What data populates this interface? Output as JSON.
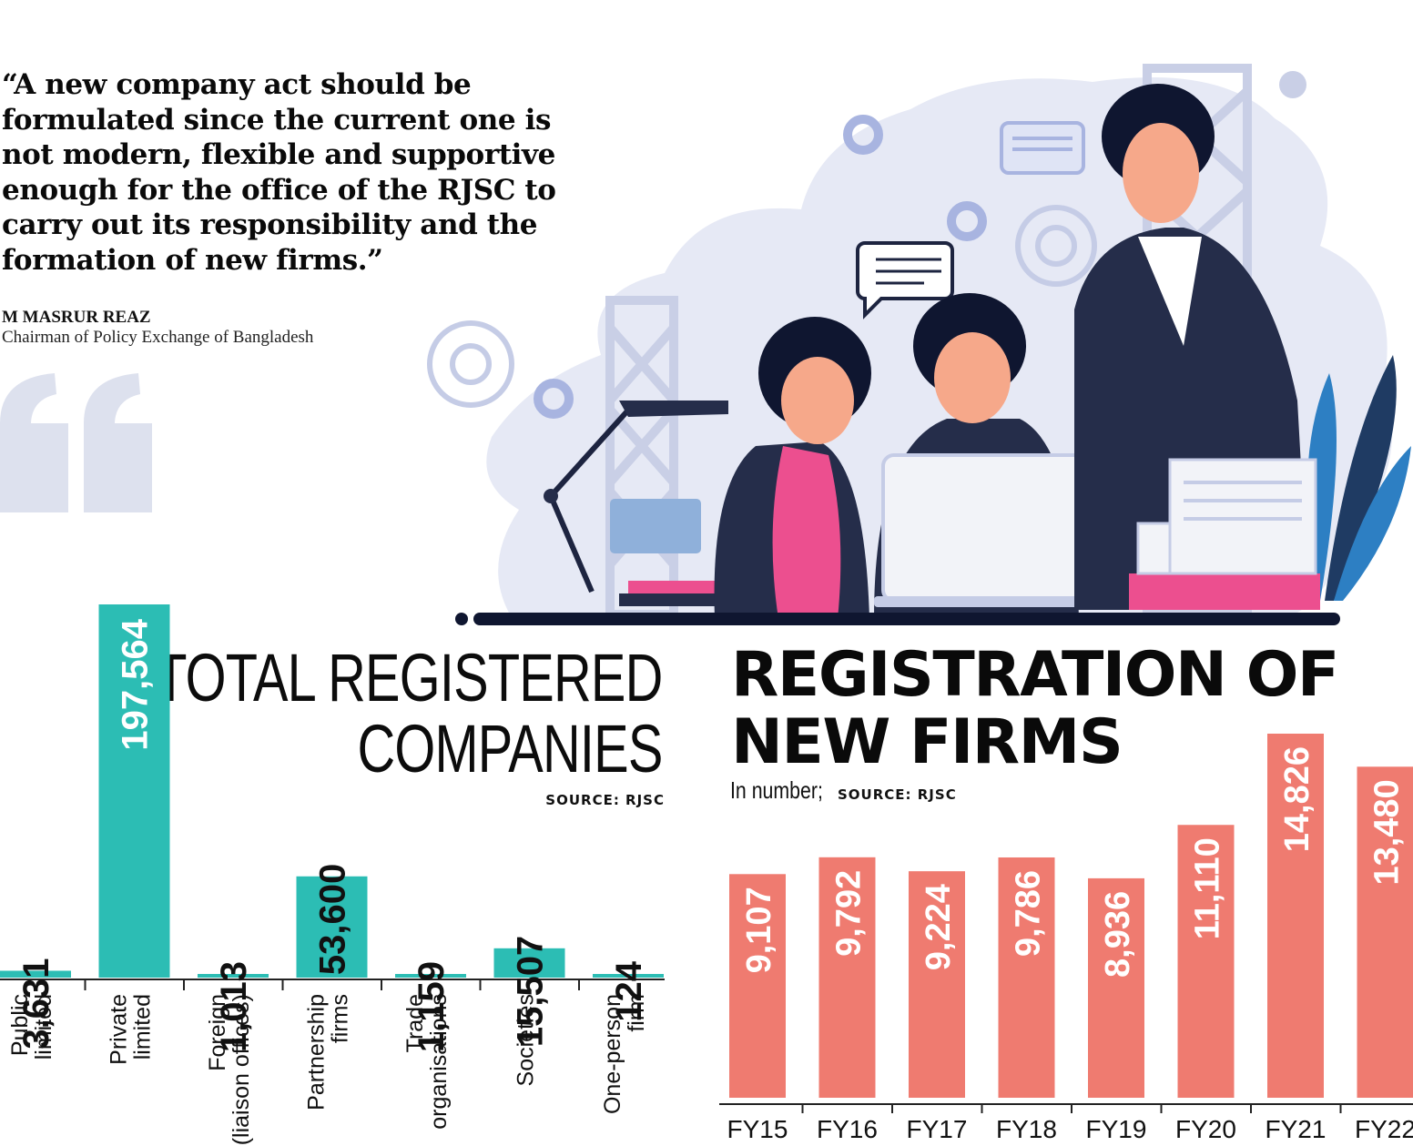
{
  "quote": {
    "lines": [
      "“A new company act should be",
      "formulated since the current one is",
      "not modern, flexible and supportive",
      "enough for the office of the RJSC to",
      "carry out its responsibility and the",
      "formation of new firms.”"
    ],
    "author": "M MASRUR REAZ",
    "role": "Chairman of Policy Exchange of Bangladesh"
  },
  "colors": {
    "teal": "#2cbdb4",
    "coral": "#ef7b70",
    "ink": "#0c0c0c",
    "illustration_bg": "#e6e9f5",
    "navy": "#252d4a",
    "pink": "#ec4f8f"
  },
  "chart_data": [
    {
      "type": "bar",
      "title_lines": [
        "TOTAL REGISTERED",
        "COMPANIES"
      ],
      "source": "SOURCE: RJSC",
      "categories": [
        [
          "Public",
          "limited"
        ],
        [
          "Private",
          "limited"
        ],
        [
          "Foreign",
          "(liaison offices)"
        ],
        [
          "Partnership",
          "firms"
        ],
        [
          "Trade",
          "organisations"
        ],
        [
          "Societies"
        ],
        [
          "One-person",
          "firm"
        ]
      ],
      "values": [
        3631,
        197564,
        1013,
        53600,
        1159,
        15507,
        124
      ],
      "value_labels": [
        "3,631",
        "197,564",
        "1,013",
        "53,600",
        "1,159",
        "15,507",
        "124"
      ],
      "ylim": [
        0,
        197564
      ],
      "color": "#2cbdb4"
    },
    {
      "type": "bar",
      "title_lines": [
        "REGISTRATION OF",
        "NEW FIRMS"
      ],
      "unit": "In number;",
      "source": "SOURCE: RJSC",
      "categories": [
        "FY15",
        "FY16",
        "FY17",
        "FY18",
        "FY19",
        "FY20",
        "FY21",
        "FY22"
      ],
      "values": [
        9107,
        9792,
        9224,
        9786,
        8936,
        11110,
        14826,
        13480
      ],
      "value_labels": [
        "9,107",
        "9,792",
        "9,224",
        "9,786",
        "8,936",
        "11,110",
        "14,826",
        "13,480"
      ],
      "ylim": [
        0,
        14826
      ],
      "color": "#ef7b70"
    }
  ]
}
